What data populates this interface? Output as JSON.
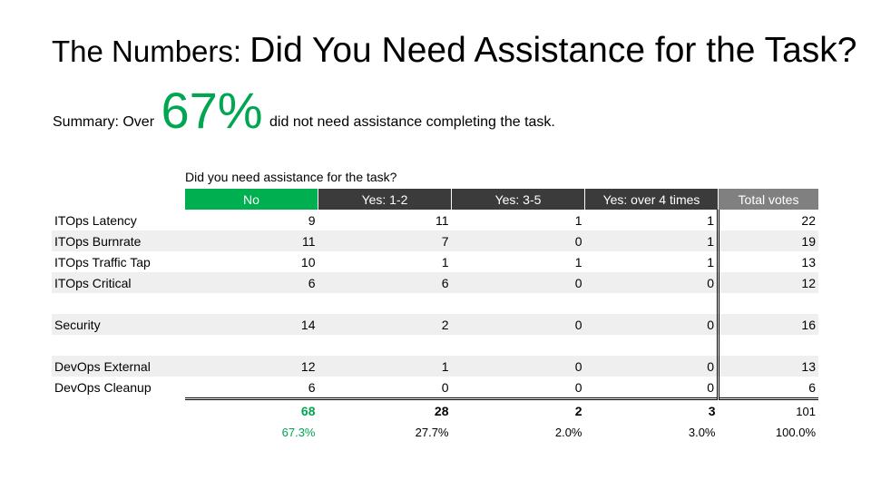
{
  "title": {
    "part1": "The Numbers:",
    "part2": "Did You Need Assistance for the Task?"
  },
  "summary": {
    "prefix": "Summary: Over",
    "highlight": "67%",
    "suffix": "did not need assistance completing the task.",
    "highlight_color": "#00a651"
  },
  "table": {
    "question": "Did you need assistance for the task?",
    "columns": [
      "No",
      "Yes: 1-2",
      "Yes: 3-5",
      "Yes: over 4 times",
      "Total votes"
    ],
    "column_colors": [
      "#00b050",
      "#3b3b3b",
      "#3b3b3b",
      "#3b3b3b",
      "#808080"
    ],
    "rows": [
      {
        "label": "ITOps Latency",
        "values": [
          "9",
          "11",
          "1",
          "1",
          "22"
        ]
      },
      {
        "label": "ITOps Burnrate",
        "values": [
          "11",
          "7",
          "0",
          "1",
          "19"
        ]
      },
      {
        "label": "ITOps Traffic Tap",
        "values": [
          "10",
          "1",
          "1",
          "1",
          "13"
        ]
      },
      {
        "label": "ITOps Critical",
        "values": [
          "6",
          "6",
          "0",
          "0",
          "12"
        ]
      },
      {
        "label": "",
        "values": [
          "",
          "",
          "",
          "",
          ""
        ]
      },
      {
        "label": "Security",
        "values": [
          "14",
          "2",
          "0",
          "0",
          "16"
        ]
      },
      {
        "label": "",
        "values": [
          "",
          "",
          "",
          "",
          ""
        ]
      },
      {
        "label": "DevOps External",
        "values": [
          "12",
          "1",
          "0",
          "0",
          "13"
        ]
      },
      {
        "label": "DevOps Cleanup",
        "values": [
          "6",
          "0",
          "0",
          "0",
          "6"
        ]
      }
    ],
    "totals": [
      "68",
      "28",
      "2",
      "3",
      "101"
    ],
    "percents": [
      "67.3%",
      "27.7%",
      "2.0%",
      "3.0%",
      "100.0%"
    ]
  }
}
